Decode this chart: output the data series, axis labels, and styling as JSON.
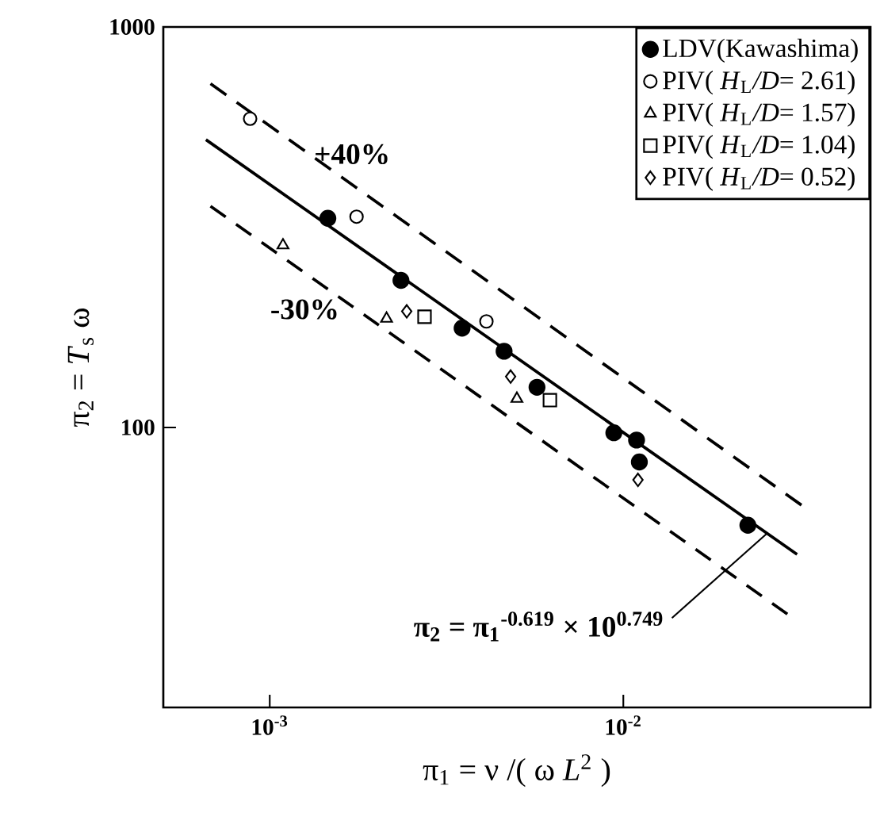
{
  "chart_data": {
    "type": "scatter",
    "xlabel": "π$_{1}$ = ν /( ω *L*$^{2}$ )",
    "ylabel": "π$_{2}$ = *T*$_{s}$ ω",
    "log": "xy",
    "xlim": [
      0.0005,
      0.05
    ],
    "ylim": [
      20,
      1000
    ],
    "xticks": [
      {
        "value": 0.001,
        "label": "10$^{-3}$"
      },
      {
        "value": 0.01,
        "label": "10$^{-2}$"
      }
    ],
    "yticks": [
      100,
      1000
    ],
    "legend": "top right",
    "series": [
      {
        "name": "LDV(Kawashima)",
        "marker": "circle",
        "color": "#000000",
        "x": [
          0.00146,
          0.00235,
          0.0035,
          0.0046,
          0.0057,
          0.0094,
          0.0109,
          0.0111,
          0.0225
        ],
        "values": [
          333,
          233,
          177,
          155,
          126,
          97,
          93,
          82,
          57
        ]
      },
      {
        "name": "PIV( *H*$_{L}$*/D*= 2.61)",
        "marker": "circle",
        "color": "#ffffff",
        "x": [
          0.00088,
          0.00176,
          0.0041
        ],
        "values": [
          590,
          336,
          184
        ]
      },
      {
        "name": "PIV( *H*$_{L}$*/D*= 1.57)",
        "marker": "triangle",
        "color": "#ffffff",
        "x": [
          0.00109,
          0.00214,
          0.005
        ],
        "values": [
          285,
          187,
          118
        ]
      },
      {
        "name": "PIV( *H*$_{L}$*/D*= 1.04)",
        "marker": "square",
        "color": "#ffffff",
        "x": [
          0.00274,
          0.0062
        ],
        "values": [
          189,
          117
        ]
      },
      {
        "name": "PIV( *H*$_{L}$*/D*= 0.52)",
        "marker": "diamond",
        "color": "#ffffff",
        "x": [
          0.00244,
          0.0048,
          0.011
        ],
        "values": [
          195,
          134,
          74
        ]
      },
      {
        "type": "line",
        "marker": "none",
        "line_style": "solid",
        "color": "#000000",
        "x": [
          0.00066,
          0.031
        ],
        "values": [
          523,
          48.2
        ]
      },
      {
        "type": "line",
        "marker": "none",
        "line_style": "dashed",
        "color": "#000000",
        "x": [
          0.00068,
          0.0319
        ],
        "values": [
          722,
          64
        ]
      },
      {
        "type": "line",
        "marker": "none",
        "line_style": "dashed",
        "color": "#000000",
        "x": [
          0.00068,
          0.0291
        ],
        "values": [
          357,
          34.2
        ]
      }
    ],
    "annotations": [
      "+40%",
      "-30%",
      {
        "text": "π$_{2}$ = π$_{1}$$^{-0.619}$ × 10$^{0.749}$",
        "x": 0.0255,
        "y": 54.4
      }
    ]
  }
}
